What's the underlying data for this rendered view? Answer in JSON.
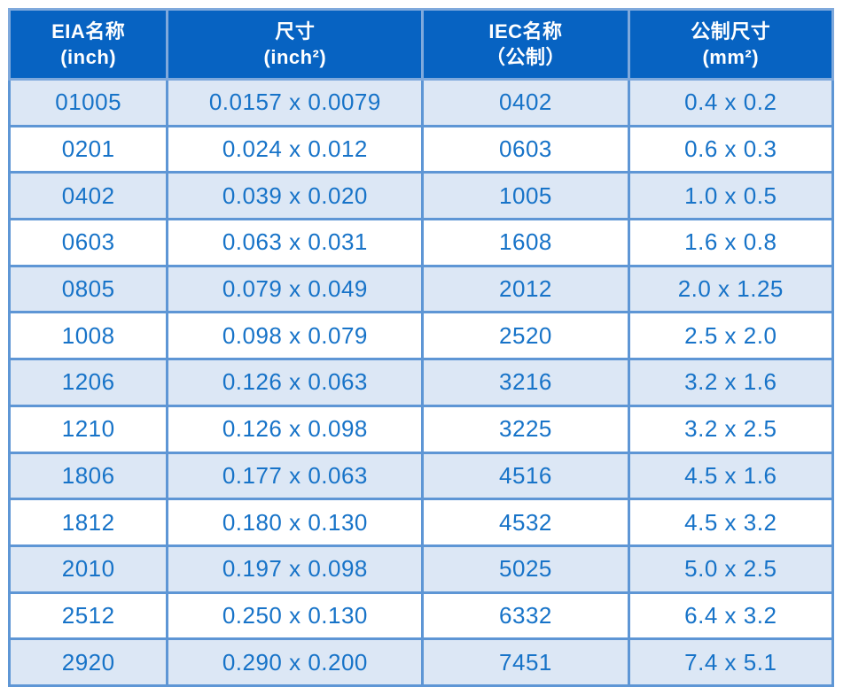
{
  "colors": {
    "page_bg": "#FFFFFF",
    "header_bg": "#0763C2",
    "header_text": "#FFFFFF",
    "header_border": "#7FA9DC",
    "border_color": "#5E96D5",
    "cell_text": "#1773C8",
    "row_bg": "#FFFFFF",
    "row_alt_bg": "#DCE7F5"
  },
  "chart_data": {
    "type": "table",
    "columns": [
      {
        "title": "EIA名称",
        "subtitle": "(inch)"
      },
      {
        "title": "尺寸",
        "subtitle": "(inch²)"
      },
      {
        "title": "IEC名称",
        "subtitle": "（公制）"
      },
      {
        "title": "公制尺寸",
        "subtitle": "(mm²)"
      }
    ],
    "rows": [
      [
        "01005",
        "0.0157 x 0.0079",
        "0402",
        "0.4 x 0.2"
      ],
      [
        "0201",
        "0.024 x 0.012",
        "0603",
        "0.6 x 0.3"
      ],
      [
        "0402",
        "0.039 x 0.020",
        "1005",
        "1.0 x 0.5"
      ],
      [
        "0603",
        "0.063 x 0.031",
        "1608",
        "1.6 x 0.8"
      ],
      [
        "0805",
        "0.079 x 0.049",
        "2012",
        "2.0 x 1.25"
      ],
      [
        "1008",
        "0.098 x 0.079",
        "2520",
        "2.5 x 2.0"
      ],
      [
        "1206",
        "0.126 x 0.063",
        "3216",
        "3.2 x 1.6"
      ],
      [
        "1210",
        "0.126 x 0.098",
        "3225",
        "3.2 x 2.5"
      ],
      [
        "1806",
        "0.177 x 0.063",
        "4516",
        "4.5 x 1.6"
      ],
      [
        "1812",
        "0.180 x 0.130",
        "4532",
        "4.5 x 3.2"
      ],
      [
        "2010",
        "0.197 x 0.098",
        "5025",
        "5.0 x 2.5"
      ],
      [
        "2512",
        "0.250 x 0.130",
        "6332",
        "6.4 x 3.2"
      ],
      [
        "2920",
        "0.290 x 0.200",
        "7451",
        "7.4 x 5.1"
      ]
    ]
  }
}
